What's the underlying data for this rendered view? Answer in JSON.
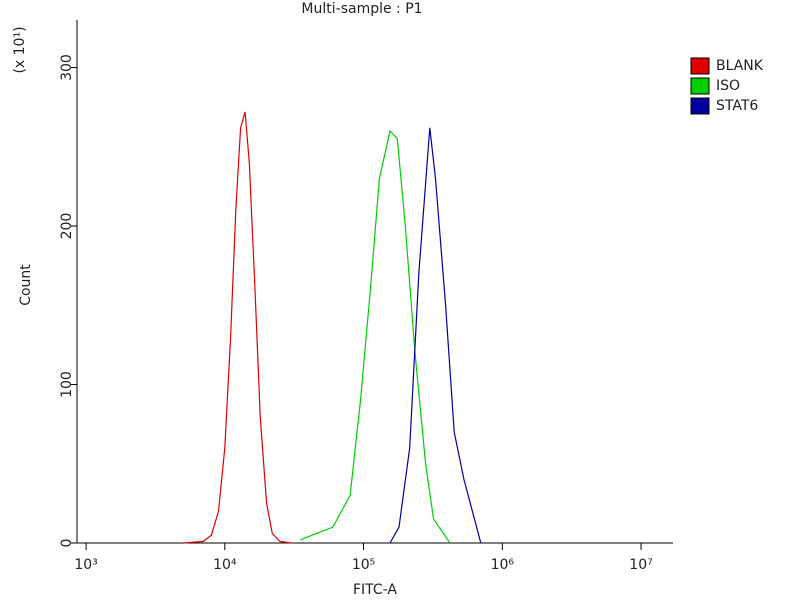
{
  "chart_data": {
    "type": "line",
    "title": "Multi-sample : P1",
    "xlabel": "FITC-A",
    "ylabel": "Count",
    "y_multiplier": "(x 10¹)",
    "xscale": "log",
    "xlim": [
      860,
      17000000
    ],
    "ylim": [
      0,
      330
    ],
    "xticks": [
      {
        "value": 1000,
        "label": "10³"
      },
      {
        "value": 10000,
        "label": "10⁴"
      },
      {
        "value": 100000,
        "label": "10⁵"
      },
      {
        "value": 1000000,
        "label": "10⁶"
      },
      {
        "value": 10000000,
        "label": "10⁷"
      }
    ],
    "yticks": [
      0,
      100,
      200,
      300
    ],
    "legend": "right",
    "series": [
      {
        "name": "BLANK",
        "color": "#e00000",
        "x": [
          5000,
          7000,
          8000,
          9000,
          10000,
          11000,
          12000,
          13000,
          14000,
          15000,
          16500,
          18000,
          20000,
          22000,
          25000,
          30000
        ],
        "values": [
          0,
          1,
          5,
          20,
          60,
          130,
          210,
          262,
          272,
          240,
          160,
          80,
          25,
          6,
          1,
          0
        ]
      },
      {
        "name": "ISO",
        "color": "#00d000",
        "x": [
          35000,
          60000,
          80000,
          95000,
          112000,
          130000,
          155000,
          175000,
          200000,
          235000,
          280000,
          320000,
          420000
        ],
        "values": [
          2,
          10,
          30,
          90,
          160,
          230,
          260,
          255,
          200,
          120,
          50,
          15,
          0
        ]
      },
      {
        "name": "STAT6",
        "color": "#0000a0",
        "x": [
          155000,
          180000,
          215000,
          250000,
          300000,
          330000,
          390000,
          450000,
          530000,
          630000,
          700000
        ],
        "values": [
          0,
          10,
          60,
          170,
          262,
          230,
          150,
          70,
          40,
          15,
          0
        ]
      }
    ]
  }
}
